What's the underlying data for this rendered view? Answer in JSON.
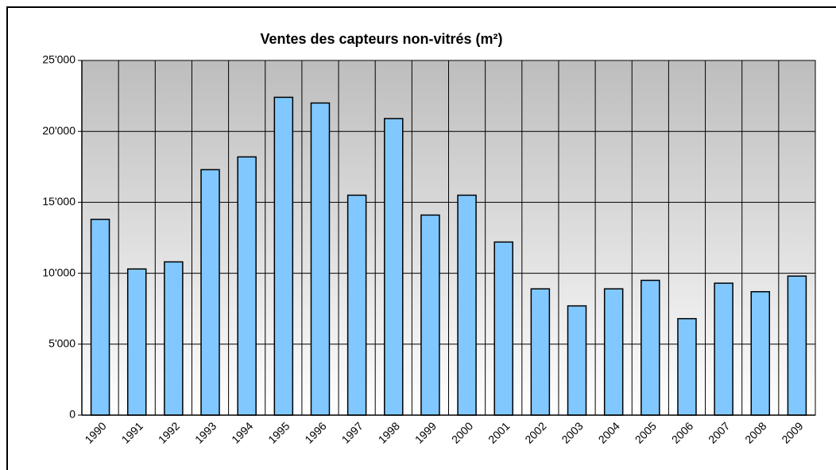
{
  "chart_data": {
    "type": "bar",
    "title": "Ventes des capteurs non-vitrés (m²)",
    "categories": [
      "1990",
      "1991",
      "1992",
      "1993",
      "1994",
      "1995",
      "1996",
      "1997",
      "1998",
      "1999",
      "2000",
      "2001",
      "2002",
      "2003",
      "2004",
      "2005",
      "2006",
      "2007",
      "2008",
      "2009"
    ],
    "values": [
      13800,
      10300,
      10800,
      17300,
      18200,
      22400,
      22000,
      15500,
      20900,
      14100,
      15500,
      12200,
      8900,
      7700,
      8900,
      9500,
      6800,
      9300,
      8700,
      9800
    ],
    "color": "#80c8ff",
    "ylim": [
      0,
      25000
    ],
    "yticks": [
      0,
      {
        "value": 5000,
        "label": "5'000"
      },
      {
        "value": 10000,
        "label": "10'000"
      },
      {
        "value": 15000,
        "label": "15'000"
      },
      {
        "value": 20000,
        "label": "20'000"
      },
      {
        "value": 25000,
        "label": "25'000"
      }
    ],
    "grid": true
  }
}
